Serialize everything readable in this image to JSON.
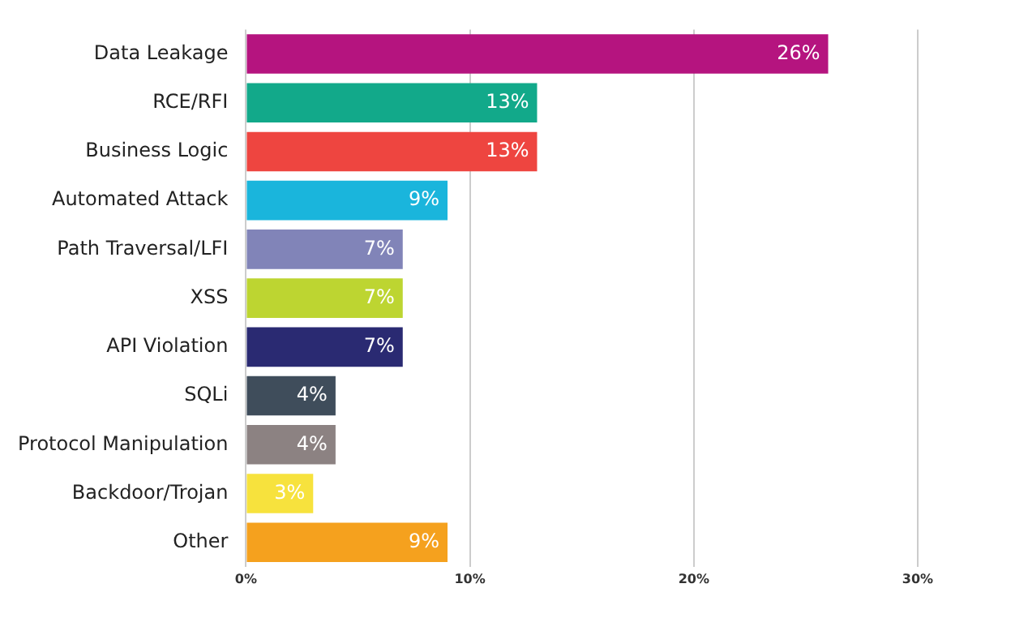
{
  "chart_data": {
    "type": "bar",
    "orientation": "horizontal",
    "categories": [
      "Data Leakage",
      "RCE/RFI",
      "Business Logic",
      "Automated Attack",
      "Path Traversal/LFI",
      "XSS",
      "API Violation",
      "SQLi",
      "Protocol Manipulation",
      "Backdoor/Trojan",
      "Other"
    ],
    "values": [
      26,
      13,
      13,
      9,
      7,
      7,
      7,
      4,
      4,
      3,
      9
    ],
    "colors": [
      "#b5147f",
      "#12a98a",
      "#ee4540",
      "#1ab5dc",
      "#8184b8",
      "#bdd531",
      "#2a2a72",
      "#3f4d5b",
      "#8c8282",
      "#f7e23d",
      "#f5a11e"
    ],
    "value_labels": [
      "26%",
      "13%",
      "13%",
      "9%",
      "7%",
      "7%",
      "7%",
      "4%",
      "4%",
      "3%",
      "9%"
    ],
    "xlim": [
      0,
      30
    ],
    "xticks": [
      {
        "value": 0,
        "label": "0%"
      },
      {
        "value": 10,
        "label": "10%"
      },
      {
        "value": 20,
        "label": "20%"
      },
      {
        "value": 30,
        "label": "30%"
      }
    ],
    "grid": "x",
    "legend": false
  }
}
